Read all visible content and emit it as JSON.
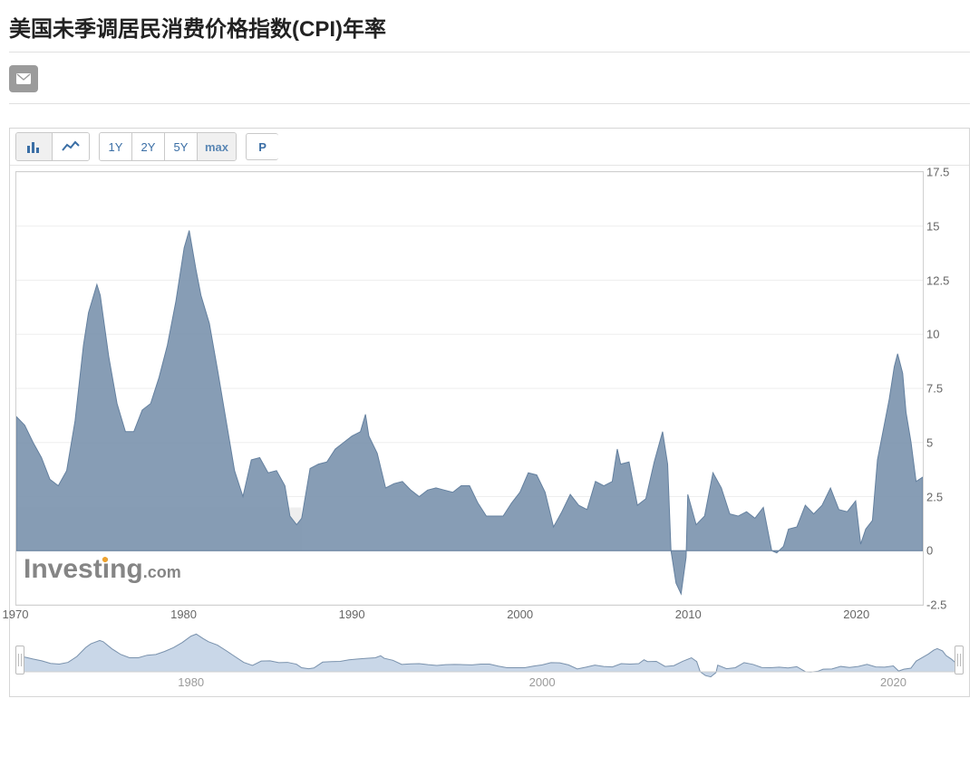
{
  "header": {
    "title": "美国未季调居民消费价格指数(CPI)年率"
  },
  "toolbar": {
    "ranges": [
      "1Y",
      "2Y",
      "5Y",
      "max"
    ],
    "active_range_index": 3,
    "p_label": "P"
  },
  "chart": {
    "type": "area",
    "series_color": "#64809f",
    "series_fill": "#7a92ad",
    "series_fill_opacity": 0.9,
    "grid_color": "#ffffff",
    "plot_border_color": "#d0d0d0",
    "background_color": "#ffffff",
    "axis_label_color": "#666666",
    "axis_label_fontsize": 13,
    "selection_overlay_color": "#d9d9d9",
    "selection_overlay_opacity": 0.45,
    "selection_xrange": [
      1970,
      1987
    ],
    "watermark_text": "Investing",
    "watermark_suffix": ".com",
    "watermark_color": "#858585",
    "watermark_accent": "#efa32f",
    "ylim": [
      -2.5,
      17.5
    ],
    "yticks": [
      -2.5,
      0,
      2.5,
      5,
      7.5,
      10,
      12.5,
      15,
      17.5
    ],
    "xlim": [
      1970,
      2024
    ],
    "xticks": [
      1970,
      1980,
      1990,
      2000,
      2010,
      2020
    ],
    "data": [
      [
        1970,
        6.2
      ],
      [
        1970.5,
        5.8
      ],
      [
        1971,
        5.0
      ],
      [
        1971.5,
        4.3
      ],
      [
        1972,
        3.3
      ],
      [
        1972.5,
        3.0
      ],
      [
        1973,
        3.7
      ],
      [
        1973.5,
        6.0
      ],
      [
        1974,
        9.5
      ],
      [
        1974.3,
        11.0
      ],
      [
        1974.8,
        12.3
      ],
      [
        1975,
        11.8
      ],
      [
        1975.5,
        9.0
      ],
      [
        1976,
        6.8
      ],
      [
        1976.5,
        5.5
      ],
      [
        1977,
        5.5
      ],
      [
        1977.5,
        6.5
      ],
      [
        1978,
        6.8
      ],
      [
        1978.5,
        8.0
      ],
      [
        1979,
        9.5
      ],
      [
        1979.5,
        11.5
      ],
      [
        1980,
        14.0
      ],
      [
        1980.3,
        14.8
      ],
      [
        1980.7,
        13.0
      ],
      [
        1981,
        11.8
      ],
      [
        1981.5,
        10.5
      ],
      [
        1982,
        8.3
      ],
      [
        1982.5,
        6.0
      ],
      [
        1983,
        3.7
      ],
      [
        1983.5,
        2.5
      ],
      [
        1984,
        4.2
      ],
      [
        1984.5,
        4.3
      ],
      [
        1985,
        3.6
      ],
      [
        1985.5,
        3.7
      ],
      [
        1986,
        3.0
      ],
      [
        1986.3,
        1.6
      ],
      [
        1986.7,
        1.2
      ],
      [
        1987,
        1.5
      ],
      [
        1987.5,
        3.8
      ],
      [
        1988,
        4.0
      ],
      [
        1988.5,
        4.1
      ],
      [
        1989,
        4.7
      ],
      [
        1989.5,
        5.0
      ],
      [
        1990,
        5.3
      ],
      [
        1990.5,
        5.5
      ],
      [
        1990.8,
        6.3
      ],
      [
        1991,
        5.3
      ],
      [
        1991.5,
        4.5
      ],
      [
        1992,
        2.9
      ],
      [
        1992.5,
        3.1
      ],
      [
        1993,
        3.2
      ],
      [
        1993.5,
        2.8
      ],
      [
        1994,
        2.5
      ],
      [
        1994.5,
        2.8
      ],
      [
        1995,
        2.9
      ],
      [
        1995.5,
        2.8
      ],
      [
        1996,
        2.7
      ],
      [
        1996.5,
        3.0
      ],
      [
        1997,
        3.0
      ],
      [
        1997.5,
        2.2
      ],
      [
        1998,
        1.6
      ],
      [
        1998.5,
        1.6
      ],
      [
        1999,
        1.6
      ],
      [
        1999.5,
        2.2
      ],
      [
        2000,
        2.7
      ],
      [
        2000.5,
        3.6
      ],
      [
        2001,
        3.5
      ],
      [
        2001.5,
        2.7
      ],
      [
        2002,
        1.1
      ],
      [
        2002.5,
        1.8
      ],
      [
        2003,
        2.6
      ],
      [
        2003.5,
        2.1
      ],
      [
        2004,
        1.9
      ],
      [
        2004.5,
        3.2
      ],
      [
        2005,
        3.0
      ],
      [
        2005.5,
        3.2
      ],
      [
        2005.8,
        4.7
      ],
      [
        2006,
        4.0
      ],
      [
        2006.5,
        4.1
      ],
      [
        2007,
        2.1
      ],
      [
        2007.5,
        2.4
      ],
      [
        2008,
        4.1
      ],
      [
        2008.5,
        5.5
      ],
      [
        2008.8,
        4.0
      ],
      [
        2009,
        0.0
      ],
      [
        2009.3,
        -1.5
      ],
      [
        2009.6,
        -2.0
      ],
      [
        2009.9,
        -0.3
      ],
      [
        2010,
        2.6
      ],
      [
        2010.5,
        1.2
      ],
      [
        2011,
        1.6
      ],
      [
        2011.5,
        3.6
      ],
      [
        2012,
        2.9
      ],
      [
        2012.5,
        1.7
      ],
      [
        2013,
        1.6
      ],
      [
        2013.5,
        1.8
      ],
      [
        2014,
        1.5
      ],
      [
        2014.5,
        2.0
      ],
      [
        2015,
        0.0
      ],
      [
        2015.3,
        -0.1
      ],
      [
        2015.7,
        0.2
      ],
      [
        2016,
        1.0
      ],
      [
        2016.5,
        1.1
      ],
      [
        2017,
        2.1
      ],
      [
        2017.5,
        1.7
      ],
      [
        2018,
        2.1
      ],
      [
        2018.5,
        2.9
      ],
      [
        2019,
        1.9
      ],
      [
        2019.5,
        1.8
      ],
      [
        2020,
        2.3
      ],
      [
        2020.3,
        0.3
      ],
      [
        2020.6,
        1.0
      ],
      [
        2021,
        1.4
      ],
      [
        2021.3,
        4.2
      ],
      [
        2021.6,
        5.4
      ],
      [
        2022,
        7.0
      ],
      [
        2022.3,
        8.5
      ],
      [
        2022.5,
        9.1
      ],
      [
        2022.8,
        8.2
      ],
      [
        2023,
        6.4
      ],
      [
        2023.3,
        5.0
      ],
      [
        2023.6,
        3.2
      ],
      [
        2024,
        3.4
      ]
    ]
  },
  "navigator": {
    "fill_color": "#c9d7e8",
    "stroke_color": "#7a92ad",
    "background": "#ffffff",
    "xticks": [
      1980,
      2000,
      2020
    ],
    "label_color": "#9a9a9a",
    "ylim": [
      -2.5,
      16
    ]
  }
}
